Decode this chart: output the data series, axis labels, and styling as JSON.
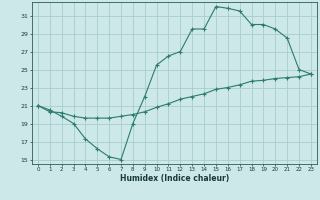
{
  "xlabel": "Humidex (Indice chaleur)",
  "bg_color": "#cce8e8",
  "grid_color": "#aacccc",
  "line_color": "#2d7a6e",
  "curve1_x": [
    0,
    1,
    2,
    3,
    4,
    5,
    6,
    7,
    8,
    9,
    10,
    11,
    12,
    13,
    14,
    15,
    16,
    17,
    18,
    19,
    20,
    21,
    22,
    23
  ],
  "curve1_y": [
    21,
    20.5,
    19.8,
    19.0,
    17.3,
    16.2,
    15.3,
    15.0,
    19.0,
    22.0,
    25.5,
    26.5,
    27.0,
    29.5,
    29.5,
    32.0,
    31.8,
    31.5,
    30.0,
    30.0,
    29.5,
    28.5,
    25.0,
    24.5
  ],
  "curve2_x": [
    0,
    1,
    2,
    3,
    4,
    5,
    6,
    7,
    8,
    9,
    10,
    11,
    12,
    13,
    14,
    15,
    16,
    17,
    18,
    19,
    20,
    21,
    22,
    23
  ],
  "curve2_y": [
    21.0,
    20.3,
    20.2,
    19.8,
    19.6,
    19.6,
    19.6,
    19.8,
    20.0,
    20.3,
    20.8,
    21.2,
    21.7,
    22.0,
    22.3,
    22.8,
    23.0,
    23.3,
    23.7,
    23.8,
    24.0,
    24.1,
    24.2,
    24.5
  ],
  "xlim": [
    -0.5,
    23.5
  ],
  "ylim": [
    14.5,
    32.5
  ],
  "yticks": [
    15,
    17,
    19,
    21,
    23,
    25,
    27,
    29,
    31
  ],
  "xticks": [
    0,
    1,
    2,
    3,
    4,
    5,
    6,
    7,
    8,
    9,
    10,
    11,
    12,
    13,
    14,
    15,
    16,
    17,
    18,
    19,
    20,
    21,
    22,
    23
  ]
}
